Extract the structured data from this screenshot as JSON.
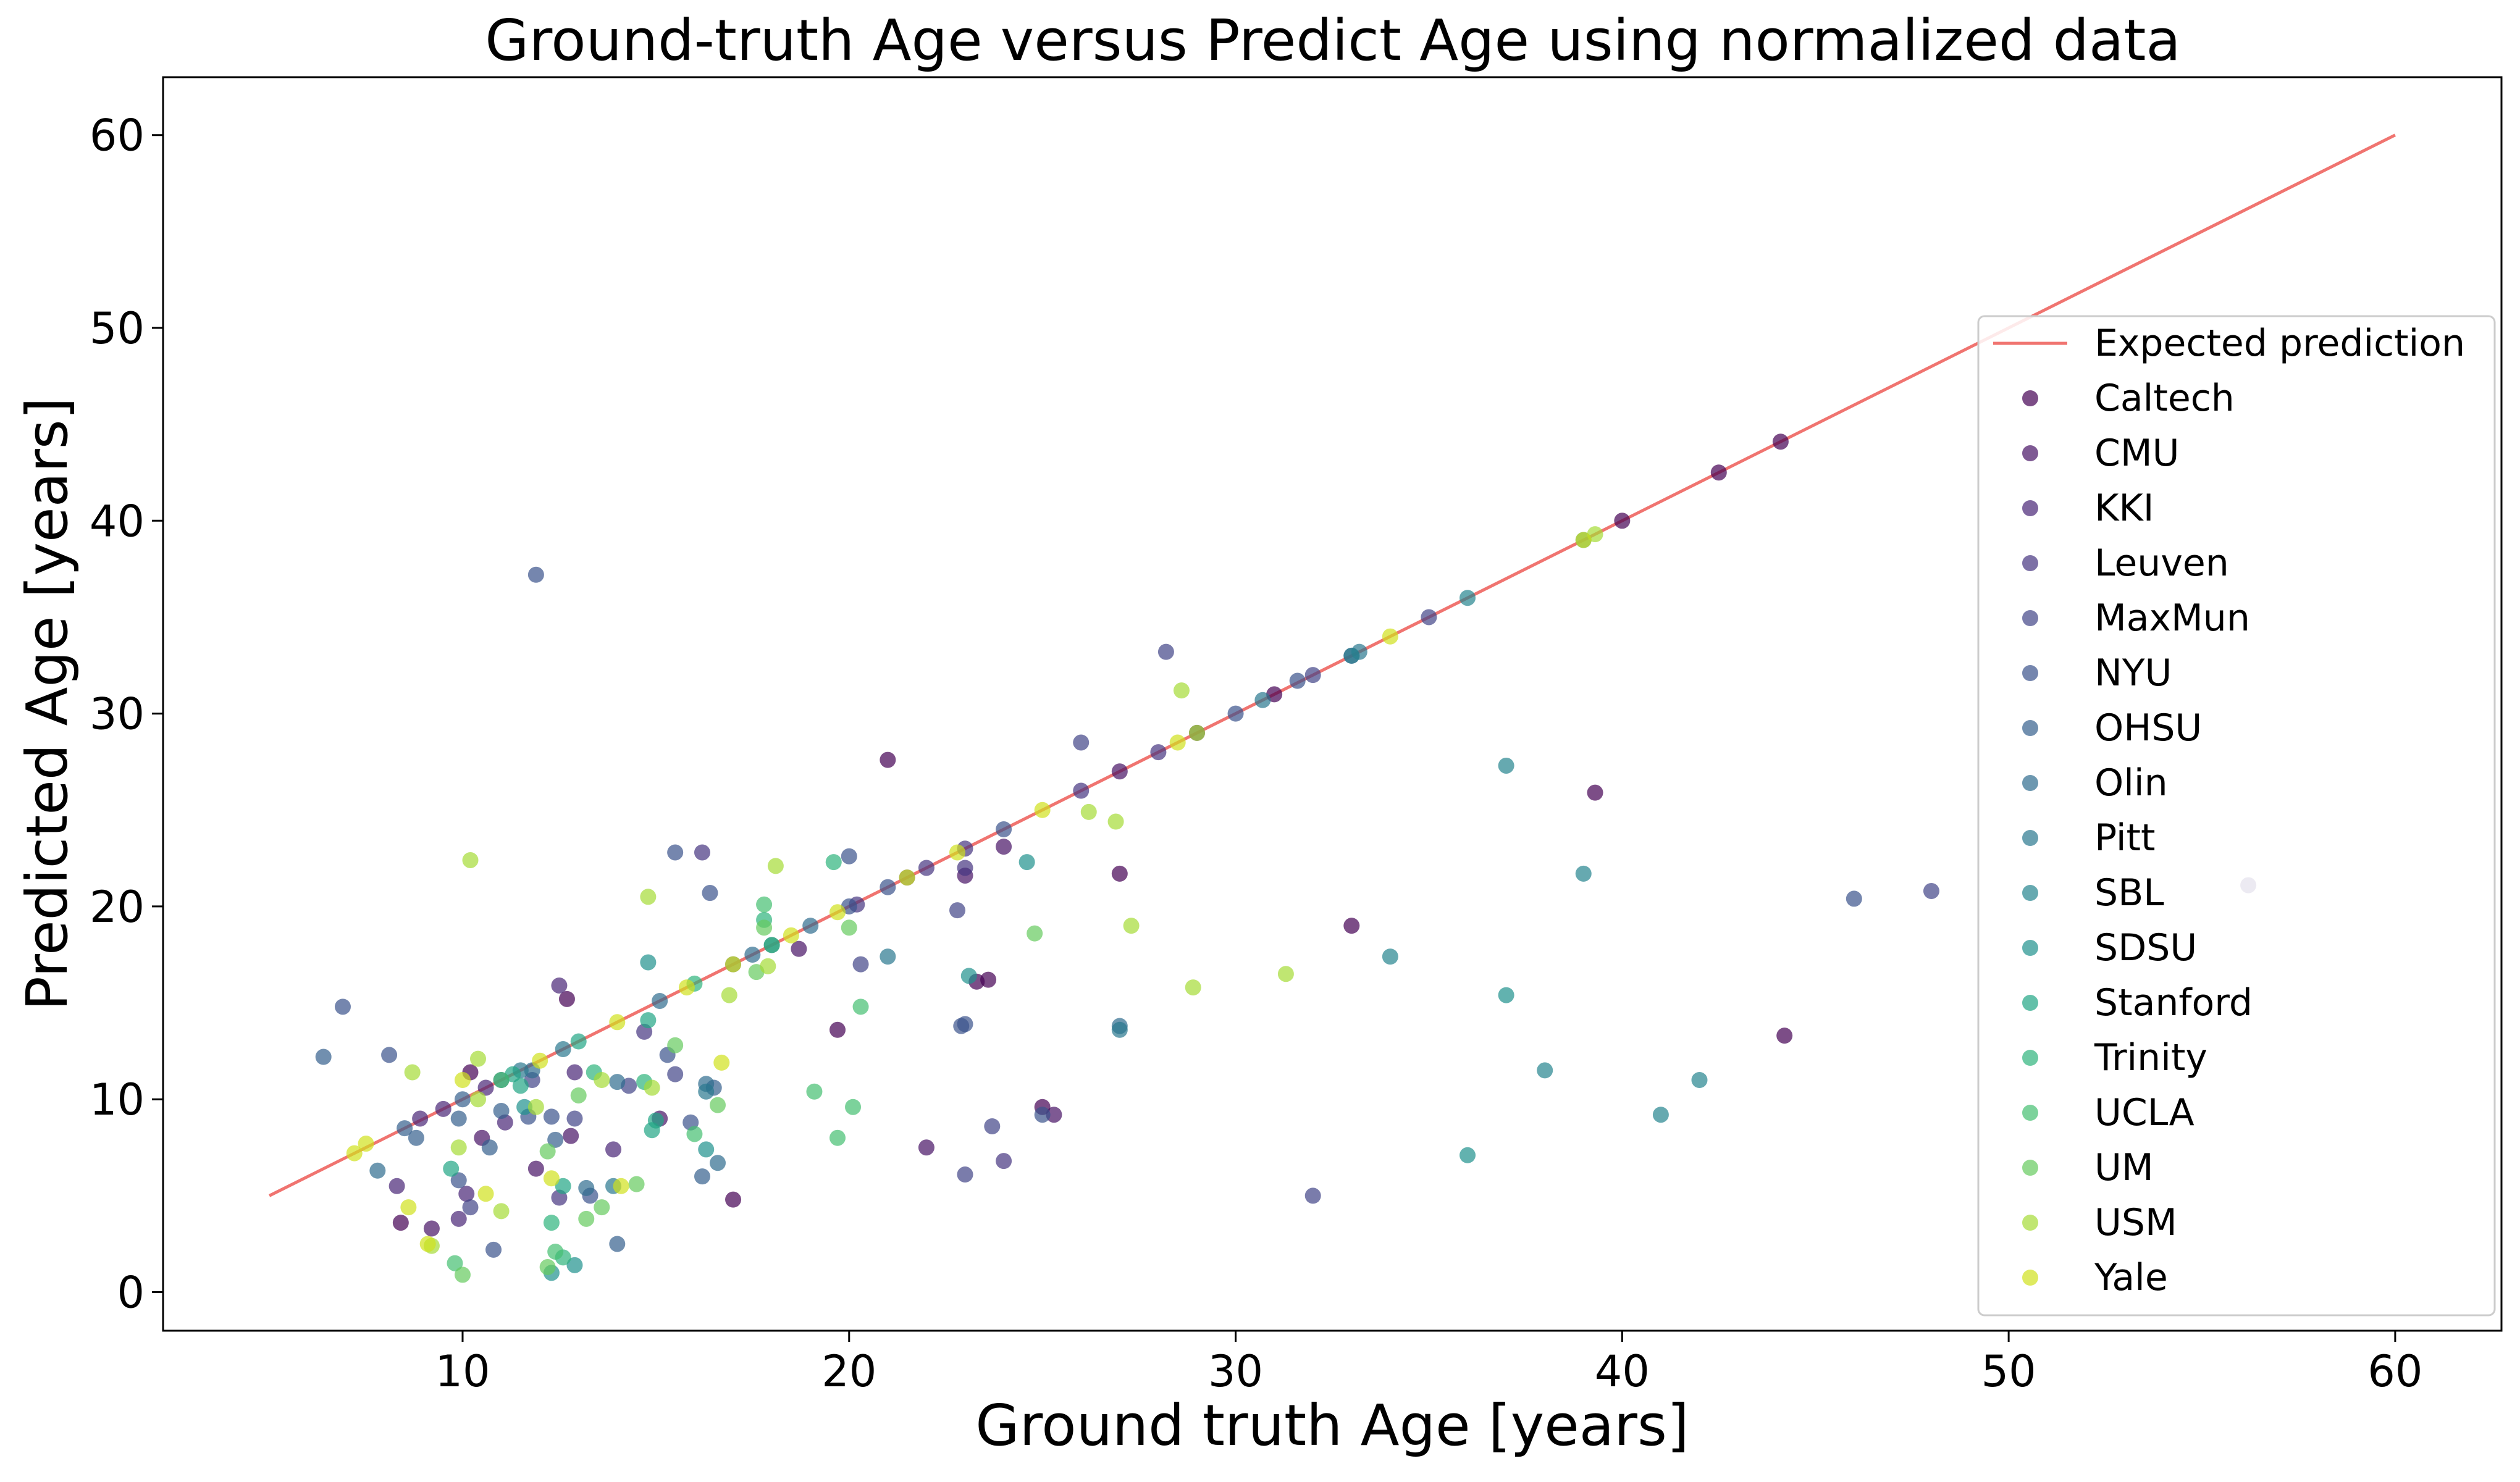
{
  "chart_data": {
    "type": "scatter",
    "title": "Ground-truth Age versus Predict Age using normalized data",
    "xlabel": "Ground truth Age [years]",
    "ylabel": "Predicted Age [years]",
    "xlim": [
      2.25,
      62.75
    ],
    "ylim": [
      -2.0,
      63.0
    ],
    "xticks": [
      10,
      20,
      30,
      40,
      50,
      60
    ],
    "yticks": [
      0,
      10,
      20,
      30,
      40,
      50,
      60
    ],
    "grid": false,
    "legend_position": "center-right",
    "line": {
      "name": "Expected prediction",
      "color": "#f07470",
      "x": [
        5,
        60
      ],
      "y": [
        5,
        60
      ]
    },
    "series": [
      {
        "name": "Caltech",
        "color": "#440154",
        "points": [
          [
            17.0,
            4.8
          ],
          [
            19.7,
            13.6
          ],
          [
            21.0,
            27.6
          ],
          [
            23.3,
            16.1
          ],
          [
            23.6,
            16.2
          ],
          [
            25.0,
            9.6
          ],
          [
            27.0,
            21.7
          ],
          [
            33.0,
            19.0
          ],
          [
            39.3,
            25.9
          ],
          [
            44.2,
            13.3
          ],
          [
            42.5,
            42.5
          ],
          [
            44.1,
            44.1
          ],
          [
            40.0,
            40.0
          ],
          [
            31.0,
            31.0
          ],
          [
            8.4,
            3.6
          ],
          [
            10.2,
            11.4
          ],
          [
            12.7,
            15.2
          ]
        ]
      },
      {
        "name": "CMU",
        "color": "#471365",
        "points": [
          [
            18.7,
            17.8
          ],
          [
            22.0,
            7.5
          ],
          [
            23.0,
            21.6
          ],
          [
            24.0,
            23.1
          ],
          [
            25.3,
            9.2
          ],
          [
            27.0,
            27.0
          ],
          [
            29.0,
            29.0
          ],
          [
            10.5,
            8.0
          ],
          [
            12.8,
            8.1
          ],
          [
            15.1,
            9.0
          ],
          [
            9.2,
            3.3
          ],
          [
            11.9,
            6.4
          ]
        ]
      },
      {
        "name": "KKI",
        "color": "#482576",
        "points": [
          [
            8.3,
            5.5
          ],
          [
            9.9,
            3.8
          ],
          [
            10.1,
            5.1
          ],
          [
            11.1,
            8.8
          ],
          [
            12.5,
            15.9
          ],
          [
            12.9,
            11.4
          ],
          [
            13.9,
            7.4
          ],
          [
            8.9,
            9.0
          ],
          [
            10.6,
            10.6
          ],
          [
            9.5,
            9.5
          ]
        ]
      },
      {
        "name": "Leuven",
        "color": "#463480",
        "points": [
          [
            16.2,
            22.8
          ],
          [
            22.0,
            22.0
          ],
          [
            23.0,
            23.0
          ],
          [
            26.0,
            26.0
          ],
          [
            28.0,
            28.0
          ],
          [
            12.5,
            4.9
          ],
          [
            14.7,
            13.5
          ],
          [
            20.2,
            20.1
          ],
          [
            21.5,
            21.5
          ],
          [
            23.0,
            22.0
          ],
          [
            24.0,
            6.8
          ],
          [
            56.2,
            21.1
          ]
        ]
      },
      {
        "name": "MaxMun",
        "color": "#414487",
        "points": [
          [
            32.0,
            5.0
          ],
          [
            48.0,
            20.8
          ],
          [
            28.2,
            33.2
          ],
          [
            33.0,
            33.0
          ],
          [
            35.0,
            35.0
          ],
          [
            32.0,
            32.0
          ],
          [
            26.0,
            28.5
          ],
          [
            23.0,
            6.1
          ],
          [
            23.7,
            8.6
          ],
          [
            22.8,
            19.8
          ],
          [
            20.3,
            17.0
          ],
          [
            15.5,
            11.3
          ],
          [
            11.8,
            11.0
          ],
          [
            10.2,
            4.4
          ],
          [
            12.9,
            9.0
          ],
          [
            14.3,
            10.7
          ]
        ]
      },
      {
        "name": "NYU",
        "color": "#3b528b",
        "points": [
          [
            46.0,
            20.4
          ],
          [
            6.9,
            14.8
          ],
          [
            8.1,
            12.3
          ],
          [
            9.9,
            5.8
          ],
          [
            10.8,
            2.2
          ],
          [
            11.7,
            9.1
          ],
          [
            12.3,
            9.1
          ],
          [
            13.3,
            5.0
          ],
          [
            15.3,
            12.3
          ],
          [
            16.4,
            20.7
          ],
          [
            15.9,
            8.8
          ],
          [
            25.0,
            9.2
          ],
          [
            22.9,
            13.8
          ],
          [
            23.0,
            13.9
          ],
          [
            20.0,
            22.6
          ],
          [
            11.9,
            37.2
          ],
          [
            15.5,
            22.8
          ],
          [
            31.6,
            31.7
          ],
          [
            20.0,
            20.0
          ],
          [
            21.0,
            21.0
          ],
          [
            24.0,
            24.0
          ],
          [
            17.0,
            17.0
          ],
          [
            30.0,
            30.0
          ]
        ]
      },
      {
        "name": "OHSU",
        "color": "#355f8d",
        "points": [
          [
            6.4,
            12.2
          ],
          [
            8.8,
            8.0
          ],
          [
            9.9,
            9.0
          ],
          [
            10.7,
            7.5
          ],
          [
            11.0,
            9.4
          ],
          [
            12.4,
            7.9
          ],
          [
            14.0,
            2.5
          ],
          [
            16.5,
            10.6
          ],
          [
            16.2,
            6.0
          ],
          [
            8.5,
            8.5
          ],
          [
            10.0,
            10.0
          ],
          [
            11.0,
            11.0
          ]
        ]
      },
      {
        "name": "Olin",
        "color": "#2f6c8e",
        "points": [
          [
            7.8,
            6.3
          ],
          [
            11.8,
            11.5
          ],
          [
            13.2,
            5.4
          ],
          [
            14.0,
            10.9
          ],
          [
            16.6,
            6.7
          ],
          [
            16.3,
            10.8
          ],
          [
            15.1,
            15.1
          ],
          [
            17.5,
            17.5
          ],
          [
            18.0,
            18.0
          ],
          [
            19.0,
            19.0
          ],
          [
            27.0,
            13.8
          ]
        ]
      },
      {
        "name": "Pitt",
        "color": "#2a788e",
        "points": [
          [
            21.0,
            17.4
          ],
          [
            27.0,
            13.6
          ],
          [
            16.3,
            10.4
          ],
          [
            13.9,
            5.5
          ],
          [
            30.7,
            30.7
          ],
          [
            33.2,
            33.2
          ],
          [
            12.6,
            12.6
          ],
          [
            11.5,
            11.5
          ]
        ]
      },
      {
        "name": "SBL",
        "color": "#25858e",
        "points": [
          [
            39.0,
            21.7
          ],
          [
            34.0,
            17.4
          ],
          [
            41.0,
            9.2
          ],
          [
            42.0,
            11.0
          ],
          [
            38.0,
            11.5
          ],
          [
            37.0,
            27.3
          ],
          [
            39.0,
            39.0
          ],
          [
            36.0,
            36.0
          ],
          [
            33.0,
            33.0
          ]
        ]
      },
      {
        "name": "SDSU",
        "color": "#1f918d",
        "points": [
          [
            23.1,
            16.4
          ],
          [
            24.6,
            22.3
          ],
          [
            14.8,
            17.1
          ],
          [
            16.3,
            7.4
          ],
          [
            12.9,
            1.4
          ],
          [
            12.3,
            1.0
          ],
          [
            11.6,
            9.6
          ],
          [
            36.0,
            7.1
          ],
          [
            37.0,
            15.4
          ]
        ]
      },
      {
        "name": "Stanford",
        "color": "#21a585",
        "points": [
          [
            9.7,
            6.4
          ],
          [
            11.5,
            10.7
          ],
          [
            12.6,
            5.5
          ],
          [
            14.8,
            14.1
          ],
          [
            14.9,
            8.4
          ],
          [
            15.0,
            8.9
          ],
          [
            11.3,
            11.3
          ],
          [
            13.0,
            13.0
          ]
        ]
      },
      {
        "name": "Trinity",
        "color": "#2eb37c",
        "points": [
          [
            12.6,
            1.8
          ],
          [
            13.4,
            11.4
          ],
          [
            14.7,
            10.9
          ],
          [
            19.6,
            22.3
          ],
          [
            17.8,
            19.3
          ],
          [
            18.0,
            18.0
          ],
          [
            16.0,
            16.0
          ],
          [
            12.3,
            3.6
          ]
        ]
      },
      {
        "name": "UCLA",
        "color": "#44bf70",
        "points": [
          [
            12.4,
            2.1
          ],
          [
            19.1,
            10.4
          ],
          [
            19.7,
            8.0
          ],
          [
            20.1,
            9.6
          ],
          [
            20.3,
            14.8
          ],
          [
            17.8,
            20.1
          ],
          [
            16.0,
            8.2
          ],
          [
            9.8,
            1.5
          ],
          [
            11.0,
            11.0
          ]
        ]
      },
      {
        "name": "UM",
        "color": "#65cb5e",
        "points": [
          [
            10.0,
            0.9
          ],
          [
            12.2,
            1.3
          ],
          [
            13.2,
            3.8
          ],
          [
            13.6,
            4.4
          ],
          [
            14.5,
            5.6
          ],
          [
            16.6,
            9.7
          ],
          [
            17.6,
            16.6
          ],
          [
            17.8,
            18.9
          ],
          [
            24.8,
            18.6
          ],
          [
            20.0,
            18.9
          ],
          [
            12.2,
            7.3
          ],
          [
            13.0,
            10.2
          ],
          [
            15.5,
            12.8
          ]
        ]
      },
      {
        "name": "USM",
        "color": "#a5db36",
        "points": [
          [
            9.2,
            2.4
          ],
          [
            9.9,
            7.5
          ],
          [
            10.4,
            10.0
          ],
          [
            11.0,
            4.2
          ],
          [
            11.9,
            9.6
          ],
          [
            13.6,
            11.0
          ],
          [
            14.9,
            10.6
          ],
          [
            16.9,
            15.4
          ],
          [
            17.9,
            16.9
          ],
          [
            18.1,
            22.1
          ],
          [
            14.8,
            20.5
          ],
          [
            10.2,
            22.4
          ],
          [
            26.9,
            24.4
          ],
          [
            26.2,
            24.9
          ],
          [
            27.3,
            19.0
          ],
          [
            28.9,
            15.8
          ],
          [
            31.3,
            16.5
          ],
          [
            28.6,
            31.2
          ],
          [
            29.0,
            29.0
          ],
          [
            39.3,
            39.3
          ],
          [
            10.4,
            12.1
          ],
          [
            8.7,
            11.4
          ]
        ]
      },
      {
        "name": "Yale",
        "color": "#d0e11c",
        "points": [
          [
            7.2,
            7.2
          ],
          [
            7.5,
            7.7
          ],
          [
            8.6,
            4.4
          ],
          [
            9.1,
            2.5
          ],
          [
            10.0,
            11.0
          ],
          [
            10.6,
            5.1
          ],
          [
            12.3,
            5.9
          ],
          [
            14.1,
            5.5
          ],
          [
            16.7,
            11.9
          ],
          [
            14.0,
            14.0
          ],
          [
            15.8,
            15.8
          ],
          [
            17.0,
            17.0
          ],
          [
            18.5,
            18.5
          ],
          [
            19.7,
            19.7
          ],
          [
            21.5,
            21.5
          ],
          [
            22.8,
            22.8
          ],
          [
            25.0,
            25.0
          ],
          [
            28.5,
            28.5
          ],
          [
            34.0,
            34.0
          ],
          [
            39.0,
            39.0
          ],
          [
            12.0,
            12.0
          ]
        ]
      }
    ]
  }
}
